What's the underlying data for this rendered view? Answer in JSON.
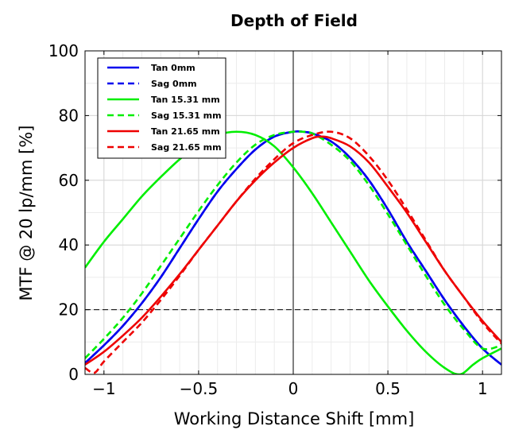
{
  "chart_data": {
    "type": "line",
    "title": "Depth of Field",
    "xlabel": "Working Distance Shift [mm]",
    "ylabel": "MTF @ 20 lp/mm [%]",
    "xlim": [
      -1.1,
      1.1
    ],
    "ylim": [
      0,
      100
    ],
    "xticks": [
      -1,
      -0.5,
      0,
      0.5,
      1
    ],
    "xtick_labels": [
      "−1",
      "−0.5",
      "0",
      "0.5",
      "1"
    ],
    "yticks": [
      0,
      20,
      40,
      60,
      80,
      100
    ],
    "ytick_labels": [
      "0",
      "20",
      "40",
      "60",
      "80",
      "100"
    ],
    "grid": true,
    "legend_position": "top-left",
    "reference_lines": [
      {
        "orientation": "horizontal",
        "value": 20,
        "style": "dashed",
        "color": "#000000"
      },
      {
        "orientation": "vertical",
        "value": 0,
        "style": "solid",
        "color": "#000000"
      }
    ],
    "series": [
      {
        "name": "Tan 0mm",
        "color": "#0000ee",
        "dash": false,
        "x": [
          -1.1,
          -1.0,
          -0.9,
          -0.8,
          -0.7,
          -0.6,
          -0.5,
          -0.4,
          -0.3,
          -0.2,
          -0.1,
          0,
          0.05,
          0.1,
          0.2,
          0.3,
          0.4,
          0.5,
          0.6,
          0.7,
          0.8,
          0.9,
          1.0,
          1.1
        ],
        "y": [
          3.5,
          9,
          15,
          22,
          30,
          39,
          48,
          56.5,
          63.5,
          69.5,
          73.5,
          75,
          75,
          74.5,
          72,
          67,
          60,
          51,
          41,
          32,
          23,
          15,
          8,
          3
        ]
      },
      {
        "name": "Sag 0mm",
        "color": "#0000ee",
        "dash": true,
        "x": [
          -1.1,
          -1.0,
          -0.9,
          -0.8,
          -0.7,
          -0.6,
          -0.5,
          -0.4,
          -0.3,
          -0.2,
          -0.1,
          0,
          0.05,
          0.1,
          0.2,
          0.3,
          0.4,
          0.5,
          0.6,
          0.7,
          0.8,
          0.9,
          1.0,
          1.1
        ],
        "y": [
          3.5,
          9,
          15,
          22,
          30,
          39,
          48,
          56.5,
          63.5,
          69.5,
          73.5,
          75,
          75,
          74.5,
          72,
          67,
          60,
          51,
          41,
          32,
          23,
          15,
          8,
          3
        ]
      },
      {
        "name": "Tan 15.31 mm",
        "color": "#00ee00",
        "dash": false,
        "x": [
          -1.1,
          -1.0,
          -0.9,
          -0.8,
          -0.7,
          -0.6,
          -0.5,
          -0.4,
          -0.3,
          -0.2,
          -0.1,
          0,
          0.1,
          0.2,
          0.3,
          0.4,
          0.5,
          0.6,
          0.7,
          0.8,
          0.88,
          0.95,
          1.0,
          1.1
        ],
        "y": [
          33,
          41,
          48,
          55,
          61,
          66.5,
          71,
          74,
          75,
          74,
          70.5,
          64,
          56,
          47,
          38,
          29,
          21,
          13.5,
          7,
          2,
          0,
          3,
          5,
          8
        ]
      },
      {
        "name": "Sag 15.31 mm",
        "color": "#00ee00",
        "dash": true,
        "x": [
          -1.1,
          -1.0,
          -0.9,
          -0.8,
          -0.7,
          -0.6,
          -0.5,
          -0.4,
          -0.3,
          -0.2,
          -0.1,
          0,
          0.05,
          0.1,
          0.2,
          0.3,
          0.4,
          0.5,
          0.6,
          0.7,
          0.8,
          0.9,
          1.0,
          1.1
        ],
        "y": [
          5,
          11,
          17.5,
          25,
          33.5,
          42,
          50.5,
          58.5,
          65.5,
          71,
          74,
          75,
          75,
          74.5,
          71,
          66,
          58.5,
          49.5,
          40,
          30.5,
          21.5,
          14,
          8,
          9
        ]
      },
      {
        "name": "Tan 21.65 mm",
        "color": "#ee0000",
        "dash": false,
        "x": [
          -1.1,
          -1.0,
          -0.9,
          -0.8,
          -0.7,
          -0.6,
          -0.5,
          -0.4,
          -0.3,
          -0.2,
          -0.1,
          0,
          0.1,
          0.15,
          0.2,
          0.3,
          0.4,
          0.5,
          0.6,
          0.7,
          0.8,
          0.9,
          1.0,
          1.1
        ],
        "y": [
          3,
          7,
          12,
          17.5,
          24,
          31,
          38.5,
          46,
          53.5,
          60,
          65.5,
          70,
          73,
          73.5,
          73,
          70.5,
          65.5,
          58,
          50,
          41,
          32,
          24,
          16.5,
          10
        ]
      },
      {
        "name": "Sag 21.65 mm",
        "color": "#ee0000",
        "dash": true,
        "x": [
          -1.1,
          -1.05,
          -1.0,
          -0.9,
          -0.8,
          -0.7,
          -0.6,
          -0.5,
          -0.4,
          -0.3,
          -0.2,
          -0.1,
          0,
          0.1,
          0.2,
          0.3,
          0.4,
          0.5,
          0.6,
          0.7,
          0.8,
          0.9,
          1.0,
          1.1
        ],
        "y": [
          2,
          0.5,
          4,
          10,
          16,
          23,
          30.5,
          38.5,
          46,
          53.5,
          60.5,
          66.5,
          71.5,
          74,
          75,
          73,
          67.5,
          60,
          51,
          41.5,
          32,
          24,
          16,
          9.5
        ]
      }
    ]
  }
}
